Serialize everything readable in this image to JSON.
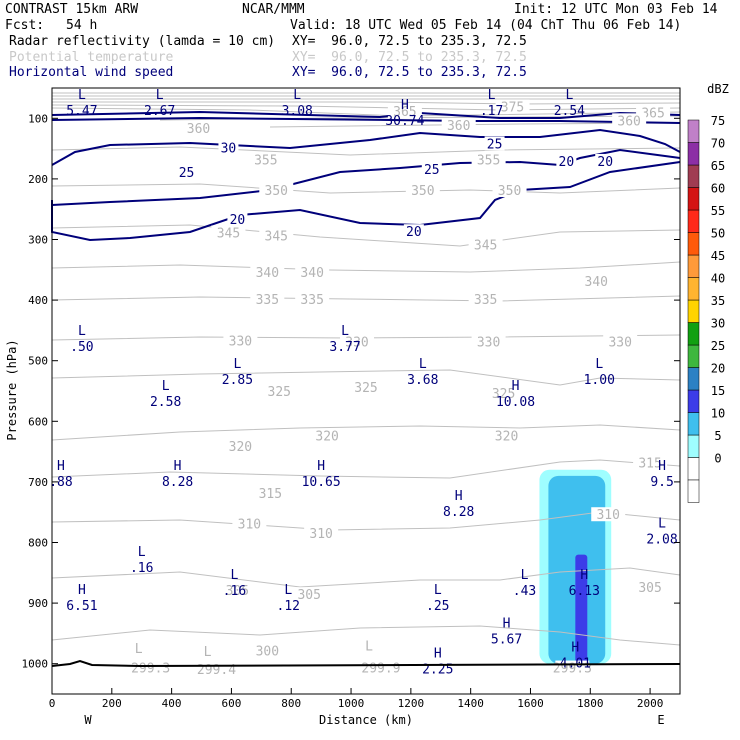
{
  "header": {
    "model": "CONTRAST 15km ARW",
    "center": "NCAR/MMM",
    "init": "Init: 12 UTC Mon 03 Feb 14",
    "fcst_label": "Fcst:",
    "fcst_value": "54 h",
    "valid": "Valid: 18 UTC Wed 05 Feb 14 (04 ChT Thu 06 Feb 14)",
    "fields": [
      {
        "name": "Radar reflectivity (lamda = 10 cm)",
        "xy": "XY=  96.0, 72.5 to 235.3, 72.5",
        "color": "#000000"
      },
      {
        "name": "Potential temperature",
        "xy": "XY=  96.0, 72.5 to 235.3, 72.5",
        "color": "#c8c8c8"
      },
      {
        "name": "Horizontal wind speed",
        "xy": "XY=  96.0, 72.5 to 235.3, 72.5",
        "color": "#00007a"
      }
    ]
  },
  "chart_data": {
    "type": "cross-section",
    "xlabel": "Distance (km)",
    "ylabel": "Pressure (hPa)",
    "xlim": [
      0,
      2100
    ],
    "ylim": [
      1050,
      50
    ],
    "x_ticks": [
      0,
      200,
      400,
      600,
      800,
      1000,
      1200,
      1400,
      1600,
      1800,
      2000
    ],
    "y_ticks": [
      100,
      200,
      300,
      400,
      500,
      600,
      700,
      800,
      900,
      1000
    ],
    "x_end_labels": {
      "left": "W",
      "right": "E"
    },
    "colorbar": {
      "unit": "dBZ",
      "levels": [
        0,
        5,
        10,
        15,
        20,
        25,
        30,
        35,
        40,
        45,
        50,
        55,
        60,
        65,
        70,
        75
      ],
      "colors": [
        "#ffffff",
        "#9ffeff",
        "#3fbfee",
        "#3c3ce8",
        "#2c81c4",
        "#3eb73e",
        "#11a011",
        "#ffd400",
        "#ffb430",
        "#ff9a3a",
        "#ff5a0a",
        "#ff2a1a",
        "#d41414",
        "#a03c52",
        "#8c2fa5",
        "#c080c8"
      ]
    },
    "reflectivity": [
      {
        "dbz": 5,
        "x": [
          1630,
          1870
        ],
        "p": [
          680,
          1000
        ]
      },
      {
        "dbz": 10,
        "x": [
          1660,
          1850
        ],
        "p": [
          690,
          1000
        ]
      },
      {
        "dbz": 15,
        "x": [
          1750,
          1790
        ],
        "p": [
          820,
          1000
        ]
      }
    ],
    "theta_labels": [
      {
        "v": "360",
        "x": 490,
        "p": 118
      },
      {
        "v": "360",
        "x": 1360,
        "p": 113
      },
      {
        "v": "365",
        "x": 1180,
        "p": 90
      },
      {
        "v": "365",
        "x": 2010,
        "p": 92
      },
      {
        "v": "375",
        "x": 1540,
        "p": 82
      },
      {
        "v": "360",
        "x": 1930,
        "p": 105
      },
      {
        "v": "355",
        "x": 715,
        "p": 170
      },
      {
        "v": "355",
        "x": 1460,
        "p": 170
      },
      {
        "v": "350",
        "x": 750,
        "p": 220
      },
      {
        "v": "350",
        "x": 1240,
        "p": 220
      },
      {
        "v": "350",
        "x": 1530,
        "p": 220
      },
      {
        "v": "345",
        "x": 590,
        "p": 290
      },
      {
        "v": "345",
        "x": 750,
        "p": 295
      },
      {
        "v": "345",
        "x": 1450,
        "p": 310
      },
      {
        "v": "340",
        "x": 720,
        "p": 355
      },
      {
        "v": "340",
        "x": 870,
        "p": 355
      },
      {
        "v": "340",
        "x": 1820,
        "p": 370
      },
      {
        "v": "335",
        "x": 720,
        "p": 400
      },
      {
        "v": "335",
        "x": 870,
        "p": 400
      },
      {
        "v": "335",
        "x": 1450,
        "p": 400
      },
      {
        "v": "330",
        "x": 630,
        "p": 468
      },
      {
        "v": "330",
        "x": 1020,
        "p": 470
      },
      {
        "v": "330",
        "x": 1460,
        "p": 470
      },
      {
        "v": "330",
        "x": 1900,
        "p": 470
      },
      {
        "v": "325",
        "x": 760,
        "p": 552
      },
      {
        "v": "325",
        "x": 1050,
        "p": 545
      },
      {
        "v": "325",
        "x": 1510,
        "p": 555
      },
      {
        "v": "320",
        "x": 630,
        "p": 642
      },
      {
        "v": "320",
        "x": 920,
        "p": 625
      },
      {
        "v": "320",
        "x": 1520,
        "p": 625
      },
      {
        "v": "315",
        "x": 730,
        "p": 720
      },
      {
        "v": "315",
        "x": 2000,
        "p": 670
      },
      {
        "v": "310",
        "x": 660,
        "p": 770
      },
      {
        "v": "310",
        "x": 900,
        "p": 786
      },
      {
        "v": "310",
        "x": 1860,
        "p": 755
      },
      {
        "v": "305",
        "x": 620,
        "p": 880
      },
      {
        "v": "305",
        "x": 860,
        "p": 887
      },
      {
        "v": "305",
        "x": 2000,
        "p": 875
      },
      {
        "v": "300",
        "x": 720,
        "p": 980
      },
      {
        "v": "299.3",
        "x": 330,
        "p": 1008
      },
      {
        "v": "299.4",
        "x": 550,
        "p": 1010
      },
      {
        "v": "299.9",
        "x": 1100,
        "p": 1008
      },
      {
        "v": "299.3",
        "x": 1740,
        "p": 1008
      }
    ],
    "theta_extrema": [
      {
        "k": "L",
        "x": 290,
        "p": 982
      },
      {
        "k": "L",
        "x": 520,
        "p": 987
      },
      {
        "k": "L",
        "x": 1060,
        "p": 978
      }
    ],
    "wind_labels": [
      {
        "v": "30",
        "x": 590,
        "p": 150
      },
      {
        "v": "25",
        "x": 450,
        "p": 190
      },
      {
        "v": "25",
        "x": 1270,
        "p": 185
      },
      {
        "v": "25",
        "x": 1480,
        "p": 143
      },
      {
        "v": "20",
        "x": 620,
        "p": 268
      },
      {
        "v": "20",
        "x": 1210,
        "p": 288
      },
      {
        "v": "20",
        "x": 1720,
        "p": 172
      },
      {
        "v": "20",
        "x": 1850,
        "p": 172
      }
    ],
    "wind_extrema": [
      {
        "k": "L",
        "x": 100,
        "p": 68,
        "v": "5.47"
      },
      {
        "k": "L",
        "x": 360,
        "p": 68,
        "v": "2.67"
      },
      {
        "k": "L",
        "x": 820,
        "p": 68,
        "v": "3.08"
      },
      {
        "k": "H",
        "x": 1180,
        "p": 85,
        "v": "30.74"
      },
      {
        "k": "L",
        "x": 1470,
        "p": 68,
        "v": ".17"
      },
      {
        "k": "L",
        "x": 1730,
        "p": 68,
        "v": "2.54"
      },
      {
        "k": "L",
        "x": 100,
        "p": 458,
        "v": ".50"
      },
      {
        "k": "L",
        "x": 980,
        "p": 458,
        "v": "3.77"
      },
      {
        "k": "L",
        "x": 620,
        "p": 512,
        "v": "2.85"
      },
      {
        "k": "L",
        "x": 1240,
        "p": 512,
        "v": "3.68"
      },
      {
        "k": "L",
        "x": 1830,
        "p": 512,
        "v": "1.00"
      },
      {
        "k": "L",
        "x": 380,
        "p": 548,
        "v": "2.58"
      },
      {
        "k": "H",
        "x": 1550,
        "p": 548,
        "v": "10.08"
      },
      {
        "k": "H",
        "x": 30,
        "p": 680,
        "v": ".88"
      },
      {
        "k": "H",
        "x": 420,
        "p": 680,
        "v": "8.28"
      },
      {
        "k": "H",
        "x": 900,
        "p": 680,
        "v": "10.65"
      },
      {
        "k": "H",
        "x": 2040,
        "p": 680,
        "v": "9.5"
      },
      {
        "k": "H",
        "x": 1360,
        "p": 730,
        "v": "8.28"
      },
      {
        "k": "L",
        "x": 2040,
        "p": 775,
        "v": "2.08"
      },
      {
        "k": "L",
        "x": 300,
        "p": 822,
        "v": ".16"
      },
      {
        "k": "L",
        "x": 610,
        "p": 860,
        "v": ".16"
      },
      {
        "k": "L",
        "x": 1580,
        "p": 860,
        "v": ".43"
      },
      {
        "k": "H",
        "x": 1780,
        "p": 860,
        "v": "6.13"
      },
      {
        "k": "H",
        "x": 100,
        "p": 885,
        "v": "6.51"
      },
      {
        "k": "L",
        "x": 790,
        "p": 885,
        "v": ".12"
      },
      {
        "k": "L",
        "x": 1290,
        "p": 885,
        "v": ".25"
      },
      {
        "k": "H",
        "x": 1520,
        "p": 940,
        "v": "5.67"
      },
      {
        "k": "H",
        "x": 1290,
        "p": 990,
        "v": "2.25"
      },
      {
        "k": "H",
        "x": 1750,
        "p": 980,
        "v": "4.01"
      }
    ]
  }
}
